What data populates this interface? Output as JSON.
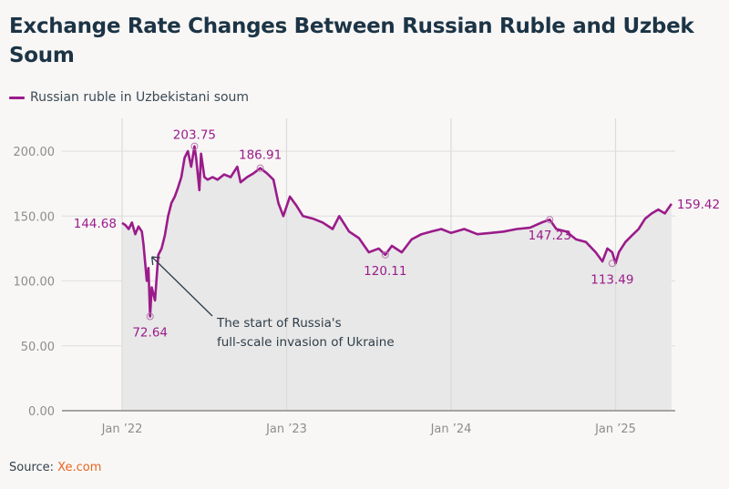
{
  "title": "Exchange Rate Changes Between Russian Ruble and Uzbek Soum",
  "legend": {
    "label": "Russian ruble in Uzbekistani soum",
    "color": "#9b1b8a"
  },
  "source": {
    "prefix": "Source: ",
    "link_text": "Xe.com"
  },
  "chart_data": {
    "type": "line",
    "title": "Exchange Rate Changes Between Russian Ruble and Uzbek Soum",
    "xlabel": "",
    "ylabel": "",
    "ylim": [
      0,
      210
    ],
    "xlim": [
      "2022-01-01",
      "2025-05-06"
    ],
    "grid": true,
    "legend_position": "top-left",
    "y_ticks": [
      "0.00",
      "50.00",
      "100.00",
      "150.00",
      "200.00"
    ],
    "y_tick_values": [
      0,
      50,
      100,
      150,
      200
    ],
    "x_ticks": [
      "Jan ’22",
      "Jan ’23",
      "Jan ’24",
      "Jan ’25"
    ],
    "x_tick_values": [
      2022.0,
      2023.0,
      2024.0,
      2025.0
    ],
    "series": [
      {
        "name": "Russian ruble in Uzbekistani soum",
        "color": "#9b1b8a",
        "x": [
          2022.0,
          2022.02,
          2022.04,
          2022.06,
          2022.08,
          2022.1,
          2022.12,
          2022.13,
          2022.15,
          2022.16,
          2022.17,
          2022.18,
          2022.2,
          2022.22,
          2022.24,
          2022.26,
          2022.28,
          2022.3,
          2022.32,
          2022.34,
          2022.36,
          2022.38,
          2022.4,
          2022.42,
          2022.44,
          2022.45,
          2022.47,
          2022.48,
          2022.5,
          2022.52,
          2022.55,
          2022.58,
          2022.62,
          2022.66,
          2022.7,
          2022.72,
          2022.76,
          2022.8,
          2022.84,
          2022.88,
          2022.92,
          2022.95,
          2022.98,
          2023.02,
          2023.06,
          2023.1,
          2023.16,
          2023.22,
          2023.28,
          2023.32,
          2023.38,
          2023.44,
          2023.5,
          2023.56,
          2023.6,
          2023.64,
          2023.7,
          2023.76,
          2023.82,
          2023.88,
          2023.94,
          2024.0,
          2024.08,
          2024.16,
          2024.24,
          2024.32,
          2024.4,
          2024.48,
          2024.55,
          2024.6,
          2024.64,
          2024.7,
          2024.76,
          2024.82,
          2024.88,
          2024.92,
          2024.95,
          2024.98,
          2025.0,
          2025.02,
          2025.06,
          2025.1,
          2025.14,
          2025.18,
          2025.22,
          2025.26,
          2025.3,
          2025.34
        ],
        "y": [
          144.68,
          143,
          140,
          145,
          136,
          142,
          138,
          128,
          100,
          110,
          72.64,
          95,
          85,
          120,
          125,
          135,
          150,
          160,
          165,
          172,
          180,
          195,
          200,
          188,
          203.75,
          195,
          170,
          198,
          180,
          178,
          180,
          178,
          182,
          180,
          188,
          176,
          180,
          183,
          186.91,
          183,
          178,
          160,
          150,
          165,
          158,
          150,
          148,
          145,
          140,
          150,
          138,
          133,
          122,
          125,
          120.11,
          127,
          122,
          132,
          136,
          138,
          140,
          137,
          140,
          136,
          137,
          138,
          140,
          141,
          145,
          147.23,
          140,
          138,
          132,
          130,
          122,
          115,
          125,
          122,
          113.49,
          122,
          130,
          135,
          140,
          148,
          152,
          155,
          152,
          159.42
        ]
      }
    ],
    "annotations": [
      {
        "label": "144.68",
        "x": 2022.0,
        "y": 144.68
      },
      {
        "label": "72.64",
        "x": 2022.17,
        "y": 72.64
      },
      {
        "label": "203.75",
        "x": 2022.44,
        "y": 203.75
      },
      {
        "label": "186.91",
        "x": 2022.84,
        "y": 186.91
      },
      {
        "label": "120.11",
        "x": 2023.6,
        "y": 120.11
      },
      {
        "label": "147.23",
        "x": 2024.6,
        "y": 147.23
      },
      {
        "label": "113.49",
        "x": 2024.98,
        "y": 113.49
      },
      {
        "label": "159.42",
        "x": 2025.34,
        "y": 159.42
      }
    ],
    "note": {
      "lines": [
        "The start of Russia's",
        "full-scale invasion of Ukraine"
      ],
      "points_to": {
        "x": 2022.17,
        "y": 120
      }
    }
  }
}
